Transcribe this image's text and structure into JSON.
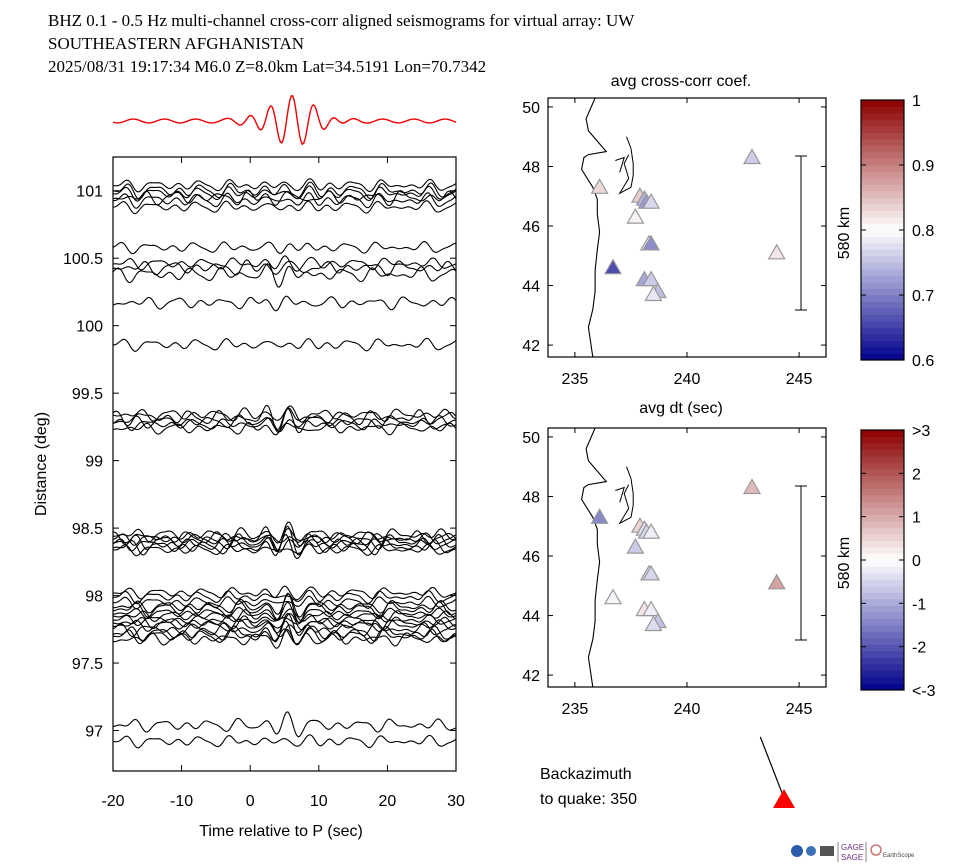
{
  "header": {
    "line1": "BHZ  0.1 - 0.5 Hz  multi-channel cross-corr aligned seismograms for virtual array: UW",
    "line2": "SOUTHEASTERN AFGHANISTAN",
    "line3": "2025/08/31  19:17:34  M6.0  Z=8.0km Lat=34.5191 Lon=70.7342"
  },
  "chart_data": [
    {
      "type": "line",
      "name": "aligned-seismograms",
      "xlabel": "Time relative to P (sec)",
      "ylabel": "Distance (deg)",
      "xlim": [
        -20,
        30
      ],
      "ylim": [
        96.7,
        101.25
      ],
      "x_ticks": [
        -20,
        -10,
        0,
        10,
        20,
        30
      ],
      "y_ticks": [
        97,
        97.5,
        98,
        98.5,
        99,
        99.5,
        100,
        100.5,
        101
      ],
      "x_tick_labels": [
        "-20",
        "-10",
        "0",
        "10",
        "20",
        "30"
      ],
      "y_tick_labels": [
        "97",
        "97.5",
        "98",
        "98.5",
        "99",
        "99.5",
        "100",
        "100.5",
        "101"
      ],
      "trace_distances_deg": [
        101.04,
        101.0,
        100.98,
        100.95,
        100.93,
        100.88,
        100.58,
        100.46,
        100.43,
        100.38,
        100.17,
        99.86,
        99.34,
        99.32,
        99.29,
        99.27,
        99.24,
        98.45,
        98.43,
        98.42,
        98.4,
        98.38,
        98.36,
        98.34,
        98.02,
        97.99,
        97.95,
        97.92,
        97.9,
        97.87,
        97.85,
        97.82,
        97.8,
        97.78,
        97.75,
        97.72,
        97.7,
        97.68,
        97.04,
        96.92
      ],
      "stack_trace_color": "#ee0000",
      "trace_color": "#000000"
    },
    {
      "type": "scatter",
      "name": "map-avg-cross-corr",
      "title": "avg cross-corr coef.",
      "xlim": [
        233.8,
        246.2
      ],
      "ylim": [
        41.6,
        50.3
      ],
      "x_ticks": [
        235,
        240,
        245
      ],
      "y_ticks": [
        42,
        44,
        46,
        48,
        50
      ],
      "x_tick_labels": [
        "235",
        "240",
        "245"
      ],
      "y_tick_labels": [
        "42",
        "44",
        "46",
        "48",
        "50"
      ],
      "scale_bar_label": "580 km",
      "colorbar": {
        "min": 0.6,
        "max": 1.0,
        "ticks": [
          0.6,
          0.7,
          0.8,
          0.9,
          1.0
        ],
        "tick_labels": [
          "0.6",
          "0.7",
          "0.8",
          "0.9",
          "1"
        ]
      },
      "stations": [
        {
          "lon": 236.1,
          "lat": 47.3,
          "value": 0.83
        },
        {
          "lon": 236.7,
          "lat": 44.6,
          "value": 0.66
        },
        {
          "lon": 237.9,
          "lat": 47.0,
          "value": 0.84
        },
        {
          "lon": 238.1,
          "lat": 46.9,
          "value": 0.74
        },
        {
          "lon": 238.2,
          "lat": 46.8,
          "value": 0.72
        },
        {
          "lon": 238.4,
          "lat": 46.8,
          "value": 0.77
        },
        {
          "lon": 237.7,
          "lat": 46.3,
          "value": 0.81
        },
        {
          "lon": 238.3,
          "lat": 45.4,
          "value": 0.79
        },
        {
          "lon": 238.4,
          "lat": 45.4,
          "value": 0.71
        },
        {
          "lon": 238.1,
          "lat": 44.2,
          "value": 0.73
        },
        {
          "lon": 238.4,
          "lat": 44.2,
          "value": 0.76
        },
        {
          "lon": 238.7,
          "lat": 43.8,
          "value": 0.75
        },
        {
          "lon": 238.5,
          "lat": 43.7,
          "value": 0.78
        },
        {
          "lon": 242.9,
          "lat": 48.3,
          "value": 0.76
        },
        {
          "lon": 244.0,
          "lat": 45.1,
          "value": 0.82
        }
      ]
    },
    {
      "type": "scatter",
      "name": "map-avg-dt",
      "title": "avg dt (sec)",
      "xlim": [
        233.8,
        246.2
      ],
      "ylim": [
        41.6,
        50.3
      ],
      "x_ticks": [
        235,
        240,
        245
      ],
      "y_ticks": [
        42,
        44,
        46,
        48,
        50
      ],
      "x_tick_labels": [
        "235",
        "240",
        "245"
      ],
      "y_tick_labels": [
        "42",
        "44",
        "46",
        "48",
        "50"
      ],
      "scale_bar_label": "580 km",
      "colorbar": {
        "min": -3,
        "max": 3,
        "ticks": [
          -3,
          -2,
          -1,
          0,
          1,
          2,
          3
        ],
        "tick_labels": [
          "<-3",
          "-2",
          "-1",
          "0",
          "1",
          "2",
          ">3"
        ]
      },
      "stations": [
        {
          "lon": 236.1,
          "lat": 47.3,
          "value": -1.4
        },
        {
          "lon": 236.7,
          "lat": 44.6,
          "value": -0.1
        },
        {
          "lon": 237.9,
          "lat": 47.0,
          "value": 0.5
        },
        {
          "lon": 238.1,
          "lat": 46.9,
          "value": -0.4
        },
        {
          "lon": 238.2,
          "lat": 46.8,
          "value": -0.5
        },
        {
          "lon": 238.4,
          "lat": 46.8,
          "value": -0.2
        },
        {
          "lon": 237.7,
          "lat": 46.3,
          "value": -0.6
        },
        {
          "lon": 238.3,
          "lat": 45.4,
          "value": -0.3
        },
        {
          "lon": 238.4,
          "lat": 45.4,
          "value": -0.5
        },
        {
          "lon": 238.1,
          "lat": 44.2,
          "value": 0.3
        },
        {
          "lon": 238.4,
          "lat": 44.2,
          "value": -0.2
        },
        {
          "lon": 238.7,
          "lat": 43.8,
          "value": -0.7
        },
        {
          "lon": 238.5,
          "lat": 43.7,
          "value": -0.4
        },
        {
          "lon": 242.9,
          "lat": 48.3,
          "value": 0.8
        },
        {
          "lon": 244.0,
          "lat": 45.1,
          "value": 1.1
        }
      ]
    }
  ],
  "backazimuth": {
    "label_line1": "Backazimuth",
    "label_line2": "to quake:  350",
    "value_deg": 350,
    "marker_color": "#ff0000"
  },
  "logos": {
    "gage": "GAGE",
    "sage": "SAGE",
    "earthscope": "EarthScope"
  }
}
